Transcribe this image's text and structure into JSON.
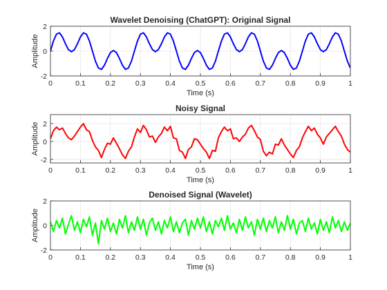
{
  "chart_data": [
    {
      "type": "line",
      "title": "Wavelet Denoising (ChatGPT): Original Signal",
      "xlabel": "Time (s)",
      "ylabel": "Amplitude",
      "xlim": [
        0,
        1
      ],
      "ylim": [
        -2,
        2
      ],
      "xticks": [
        "0",
        "0.1",
        "0.2",
        "0.3",
        "0.4",
        "0.5",
        "0.6",
        "0.7",
        "0.8",
        "0.9",
        "1"
      ],
      "yticks": [
        "-2",
        "0",
        "2"
      ],
      "grid": true,
      "series": [
        {
          "color": "#0000ff",
          "x": [
            0,
            0.01,
            0.02,
            0.03,
            0.04,
            0.05,
            0.06,
            0.07,
            0.08,
            0.09,
            0.1,
            0.11,
            0.12,
            0.13,
            0.14,
            0.15,
            0.16,
            0.17,
            0.18,
            0.19,
            0.2,
            0.21,
            0.22,
            0.23,
            0.24,
            0.25,
            0.26,
            0.27,
            0.28,
            0.29,
            0.3,
            0.31,
            0.32,
            0.33,
            0.34,
            0.35,
            0.36,
            0.37,
            0.38,
            0.39,
            0.4,
            0.41,
            0.42,
            0.43,
            0.44,
            0.45,
            0.46,
            0.47,
            0.48,
            0.49,
            0.5,
            0.51,
            0.52,
            0.53,
            0.54,
            0.55,
            0.56,
            0.57,
            0.58,
            0.59,
            0.6,
            0.61,
            0.62,
            0.63,
            0.64,
            0.65,
            0.66,
            0.67,
            0.68,
            0.69,
            0.7,
            0.71,
            0.72,
            0.73,
            0.74,
            0.75,
            0.76,
            0.77,
            0.78,
            0.79,
            0.8,
            0.81,
            0.82,
            0.83,
            0.84,
            0.85,
            0.86,
            0.87,
            0.88,
            0.89,
            0.9,
            0.91,
            0.92,
            0.93,
            0.94,
            0.95,
            0.96,
            0.97,
            0.98,
            0.99,
            1.0
          ],
          "y": [
            0.0,
            0.81,
            1.36,
            1.47,
            1.14,
            0.59,
            0.12,
            -0.05,
            0.12,
            0.59,
            1.14,
            1.47,
            1.36,
            0.81,
            0.0,
            -0.81,
            -1.36,
            -1.47,
            -1.14,
            -0.59,
            -0.12,
            0.05,
            -0.12,
            -0.59,
            -1.14,
            -1.47,
            -1.36,
            -0.81,
            0.0,
            0.81,
            1.36,
            1.47,
            1.14,
            0.59,
            0.12,
            -0.05,
            0.12,
            0.59,
            1.14,
            1.47,
            1.36,
            0.81,
            0.0,
            -0.81,
            -1.36,
            -1.47,
            -1.14,
            -0.59,
            -0.12,
            0.05,
            -0.12,
            -0.59,
            -1.14,
            -1.47,
            -1.36,
            -0.81,
            0.0,
            0.81,
            1.36,
            1.47,
            1.14,
            0.59,
            0.12,
            -0.05,
            0.12,
            0.59,
            1.14,
            1.47,
            1.36,
            0.81,
            0.0,
            -0.81,
            -1.36,
            -1.47,
            -1.14,
            -0.59,
            -0.12,
            0.05,
            -0.12,
            -0.59,
            -1.14,
            -1.47,
            -1.36,
            -0.81,
            0.0,
            0.81,
            1.36,
            1.47,
            1.14,
            0.59,
            0.12,
            -0.05,
            0.12,
            0.59,
            1.14,
            1.47,
            1.36,
            0.81,
            0.0,
            -0.81,
            -1.36
          ]
        }
      ]
    },
    {
      "type": "line",
      "title": "Noisy Signal",
      "xlabel": "Time (s)",
      "ylabel": "Amplitude",
      "xlim": [
        0,
        1
      ],
      "ylim": [
        -2.4,
        3
      ],
      "xticks": [
        "0",
        "0.1",
        "0.2",
        "0.3",
        "0.4",
        "0.5",
        "0.6",
        "0.7",
        "0.8",
        "0.9",
        "1"
      ],
      "yticks": [
        "-2",
        "0",
        "2"
      ],
      "grid": true,
      "series": [
        {
          "color": "#ff0000",
          "x": [
            0,
            0.01,
            0.02,
            0.03,
            0.04,
            0.05,
            0.06,
            0.07,
            0.08,
            0.09,
            0.1,
            0.11,
            0.12,
            0.13,
            0.14,
            0.15,
            0.16,
            0.17,
            0.18,
            0.19,
            0.2,
            0.21,
            0.22,
            0.23,
            0.24,
            0.25,
            0.26,
            0.27,
            0.28,
            0.29,
            0.3,
            0.31,
            0.32,
            0.33,
            0.34,
            0.35,
            0.36,
            0.37,
            0.38,
            0.39,
            0.4,
            0.41,
            0.42,
            0.43,
            0.44,
            0.45,
            0.46,
            0.47,
            0.48,
            0.49,
            0.5,
            0.51,
            0.52,
            0.53,
            0.54,
            0.55,
            0.56,
            0.57,
            0.58,
            0.59,
            0.6,
            0.61,
            0.62,
            0.63,
            0.64,
            0.65,
            0.66,
            0.67,
            0.68,
            0.69,
            0.7,
            0.71,
            0.72,
            0.73,
            0.74,
            0.75,
            0.76,
            0.77,
            0.78,
            0.79,
            0.8,
            0.81,
            0.82,
            0.83,
            0.84,
            0.85,
            0.86,
            0.87,
            0.88,
            0.89,
            0.9,
            0.91,
            0.92,
            0.93,
            0.94,
            0.95,
            0.96,
            0.97,
            0.98,
            0.99,
            1.0
          ],
          "y": [
            0.3,
            1.2,
            1.6,
            1.3,
            1.5,
            0.9,
            0.4,
            0.2,
            0.6,
            1.1,
            1.6,
            2.0,
            1.3,
            1.1,
            0.1,
            -0.6,
            -1.0,
            -1.8,
            -0.9,
            -0.2,
            -0.3,
            0.4,
            -0.2,
            -0.8,
            -1.5,
            -1.9,
            -1.1,
            -0.6,
            0.5,
            1.4,
            1.0,
            1.8,
            1.3,
            0.5,
            0.6,
            -0.1,
            0.5,
            0.9,
            1.6,
            1.2,
            1.7,
            0.4,
            0.3,
            -1.0,
            -1.2,
            -1.9,
            -0.9,
            -0.6,
            0.3,
            0.2,
            -0.3,
            -0.8,
            -1.2,
            -1.9,
            -1.0,
            -1.1,
            0.4,
            1.1,
            1.6,
            1.2,
            1.4,
            0.3,
            0.4,
            0.0,
            0.5,
            0.8,
            1.5,
            1.8,
            1.2,
            0.5,
            0.2,
            -1.1,
            -1.6,
            -1.2,
            -1.4,
            -0.3,
            -0.4,
            0.3,
            -0.4,
            -0.9,
            -1.4,
            -1.8,
            -1.0,
            -0.6,
            0.4,
            1.1,
            1.7,
            1.2,
            1.5,
            0.8,
            0.4,
            -0.3,
            0.5,
            0.9,
            1.3,
            1.7,
            1.1,
            0.6,
            -0.3,
            -0.9,
            -1.2
          ]
        }
      ]
    },
    {
      "type": "line",
      "title": "Denoised Signal (Wavelet)",
      "xlabel": "Time (s)",
      "ylabel": "Amplitude",
      "xlim": [
        0,
        1
      ],
      "ylim": [
        -2,
        2
      ],
      "xticks": [
        "0",
        "0.1",
        "0.2",
        "0.3",
        "0.4",
        "0.5",
        "0.6",
        "0.7",
        "0.8",
        "0.9",
        "1"
      ],
      "yticks": [
        "-2",
        "0",
        "2"
      ],
      "grid": true,
      "series": [
        {
          "color": "#00ff00",
          "x": [
            0,
            0.01,
            0.02,
            0.03,
            0.04,
            0.05,
            0.06,
            0.07,
            0.08,
            0.09,
            0.1,
            0.11,
            0.12,
            0.13,
            0.14,
            0.15,
            0.16,
            0.17,
            0.18,
            0.19,
            0.2,
            0.21,
            0.22,
            0.23,
            0.24,
            0.25,
            0.26,
            0.27,
            0.28,
            0.29,
            0.3,
            0.31,
            0.32,
            0.33,
            0.34,
            0.35,
            0.36,
            0.37,
            0.38,
            0.39,
            0.4,
            0.41,
            0.42,
            0.43,
            0.44,
            0.45,
            0.46,
            0.47,
            0.48,
            0.49,
            0.5,
            0.51,
            0.52,
            0.53,
            0.54,
            0.55,
            0.56,
            0.57,
            0.58,
            0.59,
            0.6,
            0.61,
            0.62,
            0.63,
            0.64,
            0.65,
            0.66,
            0.67,
            0.68,
            0.69,
            0.7,
            0.71,
            0.72,
            0.73,
            0.74,
            0.75,
            0.76,
            0.77,
            0.78,
            0.79,
            0.8,
            0.81,
            0.82,
            0.83,
            0.84,
            0.85,
            0.86,
            0.87,
            0.88,
            0.89,
            0.9,
            0.91,
            0.92,
            0.93,
            0.94,
            0.95,
            0.96,
            0.97,
            0.98,
            0.99,
            1.0
          ],
          "y": [
            0.3,
            -0.5,
            0.4,
            -0.2,
            0.6,
            -0.7,
            0.1,
            0.8,
            -0.4,
            0.3,
            -0.6,
            0.5,
            -0.1,
            0.7,
            -0.8,
            0.2,
            -1.5,
            0.4,
            -0.3,
            0.6,
            -0.5,
            0.2,
            -0.7,
            0.5,
            -0.2,
            0.8,
            -0.6,
            0.3,
            -0.4,
            0.7,
            -0.3,
            0.5,
            -0.8,
            0.2,
            0.6,
            -0.4,
            0.3,
            -0.7,
            0.4,
            -0.2,
            0.7,
            -0.5,
            0.3,
            -0.6,
            0.2,
            0.5,
            -0.8,
            0.4,
            -0.3,
            0.6,
            -0.2,
            0.7,
            -0.5,
            0.3,
            -0.7,
            0.4,
            -0.1,
            0.6,
            -0.4,
            0.8,
            -0.3,
            0.2,
            -0.6,
            0.5,
            -0.4,
            0.7,
            -0.2,
            0.3,
            -0.8,
            0.5,
            -0.3,
            0.6,
            -0.5,
            0.4,
            -0.2,
            0.7,
            -0.6,
            0.3,
            -0.4,
            0.8,
            -0.3,
            0.5,
            -0.7,
            0.2,
            0.4,
            -0.5,
            0.6,
            -0.3,
            0.2,
            -0.7,
            0.5,
            -0.4,
            0.3,
            -0.6,
            0.7,
            -0.2,
            0.4,
            -0.5,
            0.3,
            -0.4,
            0.2
          ]
        }
      ]
    }
  ]
}
